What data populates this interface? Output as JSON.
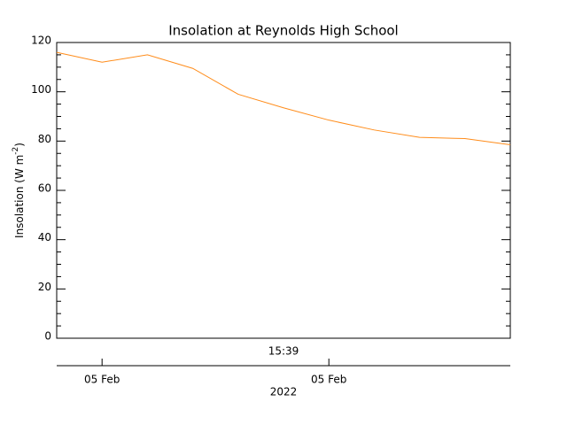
{
  "chart_data": {
    "type": "line",
    "title": "Insolation at Reynolds High School",
    "ylabel": {
      "text": "Insolation (W m",
      "sup": "-2",
      "end": ")"
    },
    "xlabel": "15:39",
    "xlabel2": "2022",
    "x": [
      0,
      1,
      2,
      3,
      4,
      5,
      6,
      7,
      8,
      9,
      10
    ],
    "xlim": [
      0,
      10
    ],
    "xticks": [
      {
        "value": 1,
        "label": "05 Feb"
      },
      {
        "value": 6,
        "label": "05 Feb"
      }
    ],
    "series": [
      {
        "color": "#ff8c1a",
        "values": [
          116,
          112,
          115,
          109.5,
          99,
          93.5,
          88.5,
          84.5,
          81.5,
          81,
          78.5
        ]
      }
    ],
    "ylim": [
      0,
      120
    ],
    "yticks": [
      0,
      20,
      40,
      60,
      80,
      100,
      120
    ]
  }
}
